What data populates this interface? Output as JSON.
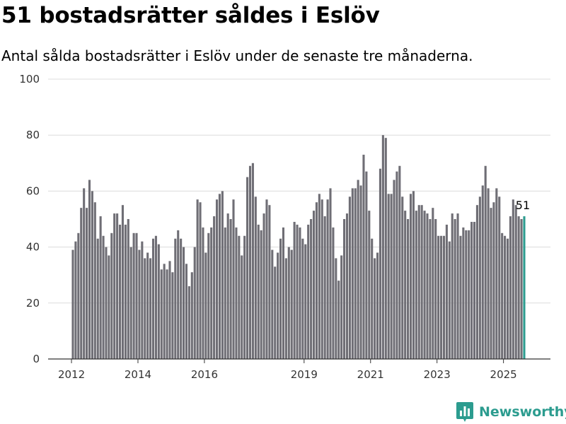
{
  "header": {
    "title": "51 bostadsrätter såldes i Eslöv",
    "subtitle": "Antal sålda bostadsrätter i Eslöv under de senaste tre månaderna."
  },
  "brand": {
    "name": "Newsworthy",
    "color": "#2c9c8f",
    "icon": "newsworthy-chart-logo-icon"
  },
  "chart_data": {
    "type": "bar",
    "ylim": [
      0,
      100
    ],
    "yticks": [
      0,
      20,
      40,
      60,
      80,
      100
    ],
    "xtick_labels": [
      "2012",
      "2014",
      "2016",
      "2019",
      "2021",
      "2023",
      "2025"
    ],
    "grid": true,
    "bar_color": "#6f6e75",
    "highlight_color": "#2c9c8f",
    "highlight_label": "51",
    "start_period": "2012-01",
    "series": [
      {
        "values": [
          39,
          42,
          45,
          54,
          61,
          54,
          64,
          60,
          56,
          43,
          51,
          44,
          40,
          37,
          45,
          52,
          52,
          48,
          55,
          48,
          50,
          40,
          45,
          45,
          39,
          42,
          36,
          38,
          36,
          43,
          44,
          41,
          32,
          34,
          32,
          35,
          31,
          43,
          46,
          43,
          40,
          34,
          26,
          31,
          40,
          57,
          56,
          47,
          38,
          45,
          47,
          51,
          57,
          59,
          60,
          47,
          52,
          50,
          57,
          47,
          44,
          37,
          44,
          65,
          69,
          70,
          58,
          48,
          46,
          52,
          57,
          55,
          39,
          33,
          38,
          43,
          47,
          36,
          40,
          39,
          49,
          48,
          47,
          43,
          41,
          48,
          50,
          53,
          56,
          59,
          57,
          51,
          57,
          61,
          47,
          36,
          28,
          37,
          50,
          52,
          58,
          61,
          61,
          64,
          62,
          73,
          67,
          53,
          43,
          36,
          38,
          68,
          80,
          79,
          59,
          59,
          64,
          67,
          69,
          58,
          53,
          50,
          59,
          60,
          53,
          55,
          55,
          53,
          52,
          50,
          54,
          50,
          44,
          44,
          44,
          48,
          42,
          52,
          50,
          52,
          44,
          47,
          46,
          46,
          49,
          49,
          55,
          58,
          62,
          69,
          61,
          54,
          56,
          61,
          58,
          45,
          44,
          43,
          51,
          57,
          55,
          51,
          50,
          51
        ]
      }
    ]
  }
}
